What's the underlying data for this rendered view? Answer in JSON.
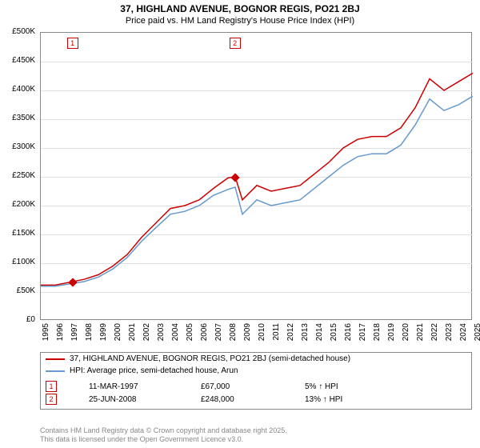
{
  "title": "37, HIGHLAND AVENUE, BOGNOR REGIS, PO21 2BJ",
  "subtitle": "Price paid vs. HM Land Registry's House Price Index (HPI)",
  "chart": {
    "type": "line",
    "background_color": "#ffffff",
    "grid_color": "#e0e0e0",
    "axis_color": "#888888",
    "ylim": [
      0,
      500000
    ],
    "ytick_step": 50000,
    "ytick_labels": [
      "£0",
      "£50K",
      "£100K",
      "£150K",
      "£200K",
      "£250K",
      "£300K",
      "£350K",
      "£400K",
      "£450K",
      "£500K"
    ],
    "xlim": [
      1995,
      2025
    ],
    "xtick_step": 1,
    "xtick_labels": [
      "1995",
      "1996",
      "1997",
      "1998",
      "1999",
      "2000",
      "2001",
      "2002",
      "2003",
      "2004",
      "2005",
      "2006",
      "2007",
      "2008",
      "2009",
      "2010",
      "2011",
      "2012",
      "2013",
      "2014",
      "2015",
      "2016",
      "2017",
      "2018",
      "2019",
      "2020",
      "2021",
      "2022",
      "2023",
      "2024",
      "2025"
    ],
    "label_fontsize": 10,
    "line_width": 1.5,
    "series": [
      {
        "name": "37, HIGHLAND AVENUE, BOGNOR REGIS, PO21 2BJ (semi-detached house)",
        "color": "#cc0000",
        "years": [
          1995,
          1996,
          1997,
          1998,
          1999,
          2000,
          2001,
          2002,
          2003,
          2004,
          2005,
          2006,
          2007,
          2008,
          2008.5,
          2009,
          2010,
          2011,
          2012,
          2013,
          2014,
          2015,
          2016,
          2017,
          2018,
          2019,
          2020,
          2021,
          2022,
          2023,
          2024,
          2025
        ],
        "values": [
          62000,
          62000,
          67000,
          72000,
          80000,
          95000,
          115000,
          145000,
          170000,
          195000,
          200000,
          210000,
          230000,
          248000,
          250000,
          210000,
          235000,
          225000,
          230000,
          235000,
          255000,
          275000,
          300000,
          315000,
          320000,
          320000,
          335000,
          370000,
          420000,
          400000,
          415000,
          430000
        ]
      },
      {
        "name": "HPI: Average price, semi-detached house, Arun",
        "color": "#6699cc",
        "years": [
          1995,
          1996,
          1997,
          1998,
          1999,
          2000,
          2001,
          2002,
          2003,
          2004,
          2005,
          2006,
          2007,
          2008,
          2008.5,
          2009,
          2010,
          2011,
          2012,
          2013,
          2014,
          2015,
          2016,
          2017,
          2018,
          2019,
          2020,
          2021,
          2022,
          2023,
          2024,
          2025
        ],
        "values": [
          60000,
          60000,
          64000,
          68000,
          76000,
          90000,
          110000,
          138000,
          162000,
          185000,
          190000,
          200000,
          218000,
          228000,
          232000,
          185000,
          210000,
          200000,
          205000,
          210000,
          230000,
          250000,
          270000,
          285000,
          290000,
          290000,
          305000,
          340000,
          385000,
          365000,
          375000,
          390000
        ]
      }
    ],
    "transactions": [
      {
        "n": "1",
        "year": 1997.2,
        "value": 67000
      },
      {
        "n": "2",
        "year": 2008.48,
        "value": 248000
      }
    ]
  },
  "legend": {
    "series": [
      {
        "color": "#cc0000",
        "label": "37, HIGHLAND AVENUE, BOGNOR REGIS, PO21 2BJ (semi-detached house)"
      },
      {
        "color": "#6699cc",
        "label": "HPI: Average price, semi-detached house, Arun"
      }
    ],
    "transactions": [
      {
        "n": "1",
        "date": "11-MAR-1997",
        "price": "£67,000",
        "delta": "5% ↑ HPI"
      },
      {
        "n": "2",
        "date": "25-JUN-2008",
        "price": "£248,000",
        "delta": "13% ↑ HPI"
      }
    ]
  },
  "footer": {
    "line1": "Contains HM Land Registry data © Crown copyright and database right 2025.",
    "line2": "This data is licensed under the Open Government Licence v3.0."
  }
}
